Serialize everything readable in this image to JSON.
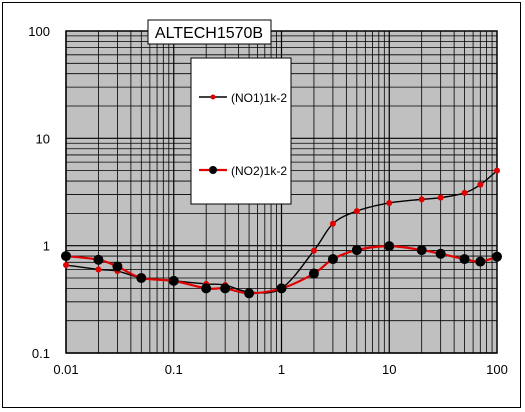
{
  "chart_data": {
    "type": "line",
    "title": "ALTECH1570B",
    "xlabel": "",
    "ylabel": "",
    "x_scale": "log",
    "y_scale": "log",
    "xlim": [
      0.01,
      100
    ],
    "ylim": [
      0.1,
      100
    ],
    "grid": true,
    "legend_position": "top-center",
    "plot_background": "#c0c0c0",
    "x_tick_labels": [
      "0.01",
      "0.1",
      "1",
      "10",
      "100"
    ],
    "y_tick_labels": [
      "100",
      "10",
      "1",
      "0.1"
    ],
    "series": [
      {
        "name": "(NO1)1k-2",
        "line_color": "#000000",
        "marker_color": "#e00000",
        "marker": "small-dot",
        "x": [
          0.01,
          0.02,
          0.03,
          0.05,
          0.1,
          0.2,
          0.3,
          0.5,
          1,
          2,
          3,
          5,
          10,
          20,
          30,
          50,
          70,
          100
        ],
        "y": [
          0.66,
          0.6,
          0.58,
          0.5,
          0.47,
          0.44,
          0.43,
          0.37,
          0.4,
          0.9,
          1.6,
          2.1,
          2.5,
          2.7,
          2.8,
          3.1,
          3.7,
          5.0
        ]
      },
      {
        "name": "(NO2)1k-2",
        "line_color": "#e00000",
        "marker_color": "#000000",
        "marker": "large-dot",
        "x": [
          0.01,
          0.02,
          0.03,
          0.05,
          0.1,
          0.2,
          0.3,
          0.5,
          1,
          2,
          3,
          5,
          10,
          20,
          30,
          50,
          70,
          100
        ],
        "y": [
          0.8,
          0.74,
          0.64,
          0.5,
          0.47,
          0.4,
          0.4,
          0.36,
          0.4,
          0.55,
          0.75,
          0.91,
          0.99,
          0.91,
          0.84,
          0.75,
          0.71,
          0.79
        ]
      }
    ]
  }
}
